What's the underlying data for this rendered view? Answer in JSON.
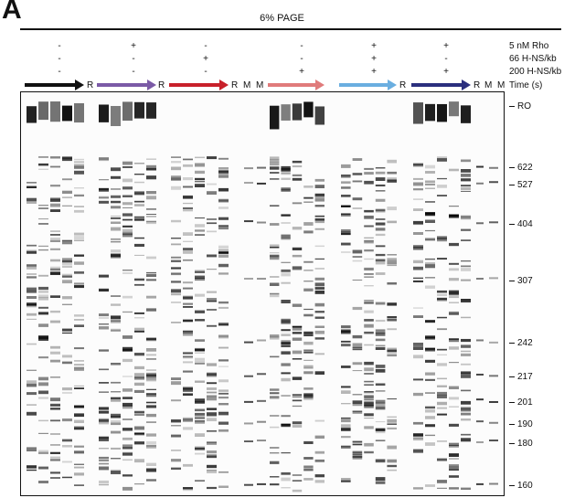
{
  "panel_letter": "A",
  "gel_title": "6% PAGE",
  "conditions": [
    {
      "label": "5 nM Rho",
      "signs": [
        "-",
        "+",
        "-",
        "-",
        "+",
        "+"
      ]
    },
    {
      "label": "66 H-NS/kb",
      "signs": [
        "-",
        "-",
        "+",
        "-",
        "+",
        "-"
      ]
    },
    {
      "label": "200 H-NS/kb",
      "signs": [
        "-",
        "-",
        "-",
        "+",
        "+",
        "+"
      ]
    }
  ],
  "time_label": "Time (s)",
  "arrows": [
    {
      "color": "#111111"
    },
    {
      "color": "#7b5aa6"
    },
    {
      "color": "#c8202a"
    },
    {
      "color": "#e07b7b"
    },
    {
      "color": "#6aaee0"
    },
    {
      "color": "#2b2f7e"
    }
  ],
  "lane_tags": [
    "R",
    "R",
    "R",
    "M",
    "M",
    "R",
    "R",
    "M",
    "M"
  ],
  "size_markers": [
    "RO",
    "622",
    "527",
    "404",
    "307",
    "242",
    "217",
    "201",
    "190",
    "180",
    "160"
  ]
}
